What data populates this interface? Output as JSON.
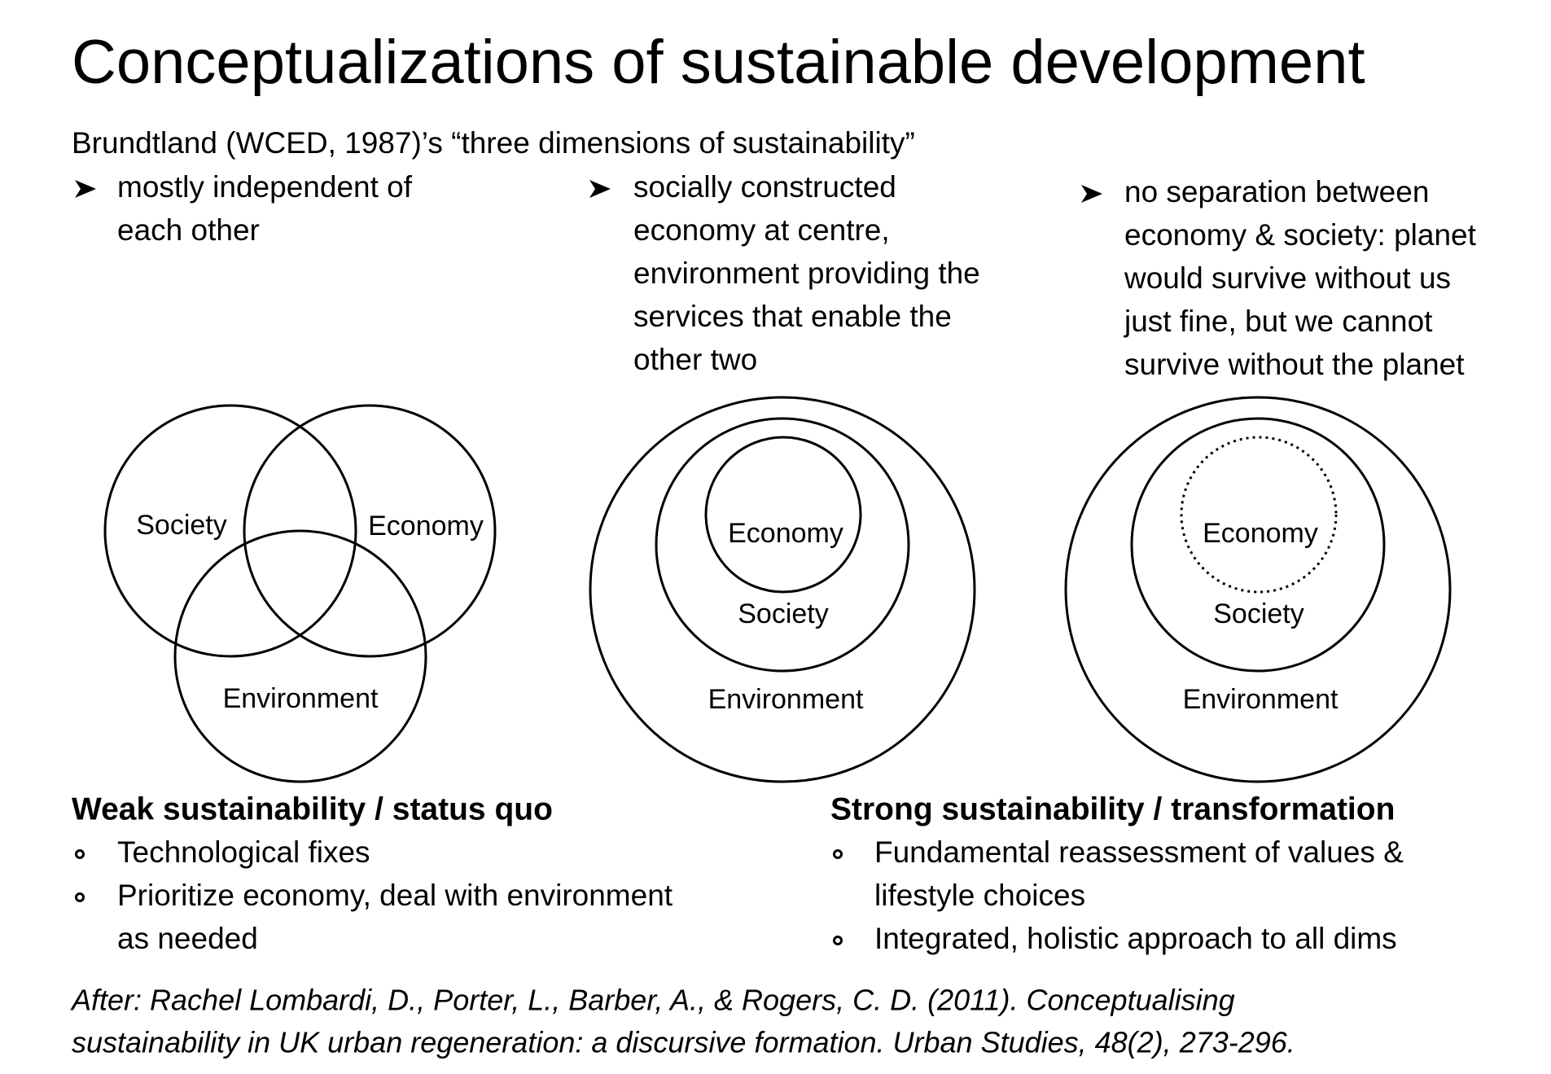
{
  "title": "Conceptualizations of sustainable development",
  "subtitle": "Brundtland (WCED, 1987)’s “three dimensions of sustainability”",
  "columns": [
    {
      "lines": [
        "mostly independent of",
        "each other"
      ]
    },
    {
      "lines": [
        "socially constructed",
        "economy at centre,",
        "environment providing the",
        "services that enable the",
        "other two"
      ]
    },
    {
      "lines": [
        "no separation between",
        "economy & society: planet",
        "would survive without us",
        "just fine, but we cannot",
        "survive without the planet"
      ]
    }
  ],
  "diagrams": [
    {
      "society": "Society",
      "economy": "Economy",
      "environment": "Environment"
    },
    {
      "economy": "Economy",
      "society": "Society",
      "environment": "Environment"
    },
    {
      "economy": "Economy",
      "society": "Society",
      "environment": "Environment"
    }
  ],
  "weak": {
    "heading": "Weak sustainability / status quo",
    "bullets": [
      [
        "Technological fixes"
      ],
      [
        "Prioritize economy, deal with environment",
        "as needed"
      ]
    ]
  },
  "strong": {
    "heading": "Strong sustainability / transformation",
    "bullets": [
      [
        "Fundamental reassessment of values &",
        "lifestyle choices"
      ],
      [
        "Integrated, holistic approach to all dims"
      ]
    ]
  },
  "citation": [
    "After: Rachel Lombardi, D., Porter, L., Barber, A., & Rogers, C. D. (2011). Conceptualising",
    "sustainability in UK urban regeneration: a discursive formation. Urban Studies, 48(2), 273-296."
  ]
}
